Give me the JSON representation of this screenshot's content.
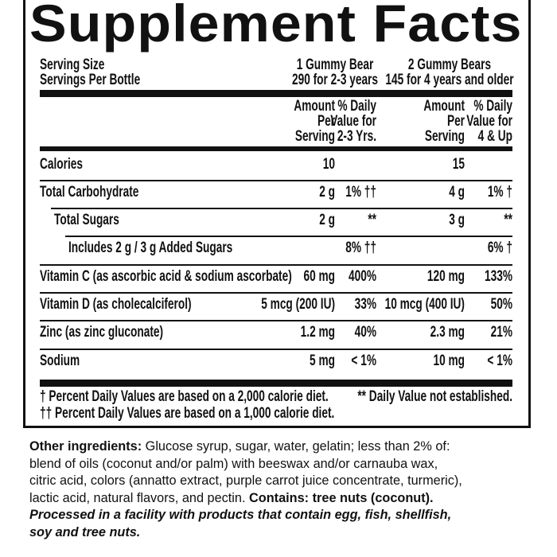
{
  "title": "Supplement Facts",
  "serving": {
    "size_label": "Serving Size",
    "per_bottle_label": "Servings Per Bottle",
    "size_a": "1 Gummy Bear",
    "size_b": "2 Gummy Bears",
    "per_a": "290 for 2-3 years",
    "per_b": "145 for 4 years and older"
  },
  "headers": {
    "amount": [
      "Amount",
      "Per",
      "Serving"
    ],
    "dv_a": [
      "% Daily",
      "Value for",
      "2-3 Yrs."
    ],
    "dv_b": [
      "% Daily",
      "Value for",
      "4 & Up"
    ]
  },
  "rows": [
    {
      "name": "Calories",
      "amt_a": "10",
      "dv_a": "",
      "amt_b": "15",
      "dv_b": ""
    },
    {
      "name": "Total Carbohydrate",
      "amt_a": "2 g",
      "dv_a": "1% ††",
      "amt_b": "4 g",
      "dv_b": "1% †"
    },
    {
      "name": "Total Sugars",
      "amt_a": "2 g",
      "dv_a": "**",
      "amt_b": "3 g",
      "dv_b": "**"
    },
    {
      "name": "Includes 2 g / 3 g Added Sugars",
      "amt_a": "",
      "dv_a": "8% ††",
      "amt_b": "",
      "dv_b": "6% †"
    },
    {
      "name": "Vitamin C (as ascorbic acid & sodium ascorbate)",
      "amt_a": "60 mg",
      "dv_a": "400%",
      "amt_b": "120 mg",
      "dv_b": "133%"
    },
    {
      "name": "Vitamin D (as cholecalciferol)",
      "amt_a": "5 mcg (200 IU)",
      "dv_a": "33%",
      "amt_b": "10 mcg (400 IU)",
      "dv_b": "50%"
    },
    {
      "name": "Zinc (as zinc gluconate)",
      "amt_a": "1.2 mg",
      "dv_a": "40%",
      "amt_b": "2.3 mg",
      "dv_b": "21%"
    },
    {
      "name": "Sodium",
      "amt_a": "5 mg",
      "dv_a": "< 1%",
      "amt_b": "10 mg",
      "dv_b": "< 1%"
    }
  ],
  "footnotes": {
    "f1": "† Percent Daily Values are based on a 2,000 calorie diet.",
    "f2": "†† Percent Daily Values are based on a 1,000 calorie diet.",
    "f3": "** Daily Value not established."
  },
  "ingredients": {
    "label": "Other ingredients:",
    "line1": " Glucose syrup, sugar, water, gelatin; less than 2% of:",
    "line2": "blend of oils (coconut and/or palm) with beeswax and/or carnauba wax,",
    "line3": "citric acid, colors (annatto extract, purple carrot juice concentrate, turmeric),",
    "line4": "lactic acid, natural flavors, and pectin. ",
    "contains": "Contains: tree nuts (coconut).",
    "facility1": "Processed in a facility with products that contain egg, fish, shellfish,",
    "facility2": "soy and tree nuts."
  }
}
